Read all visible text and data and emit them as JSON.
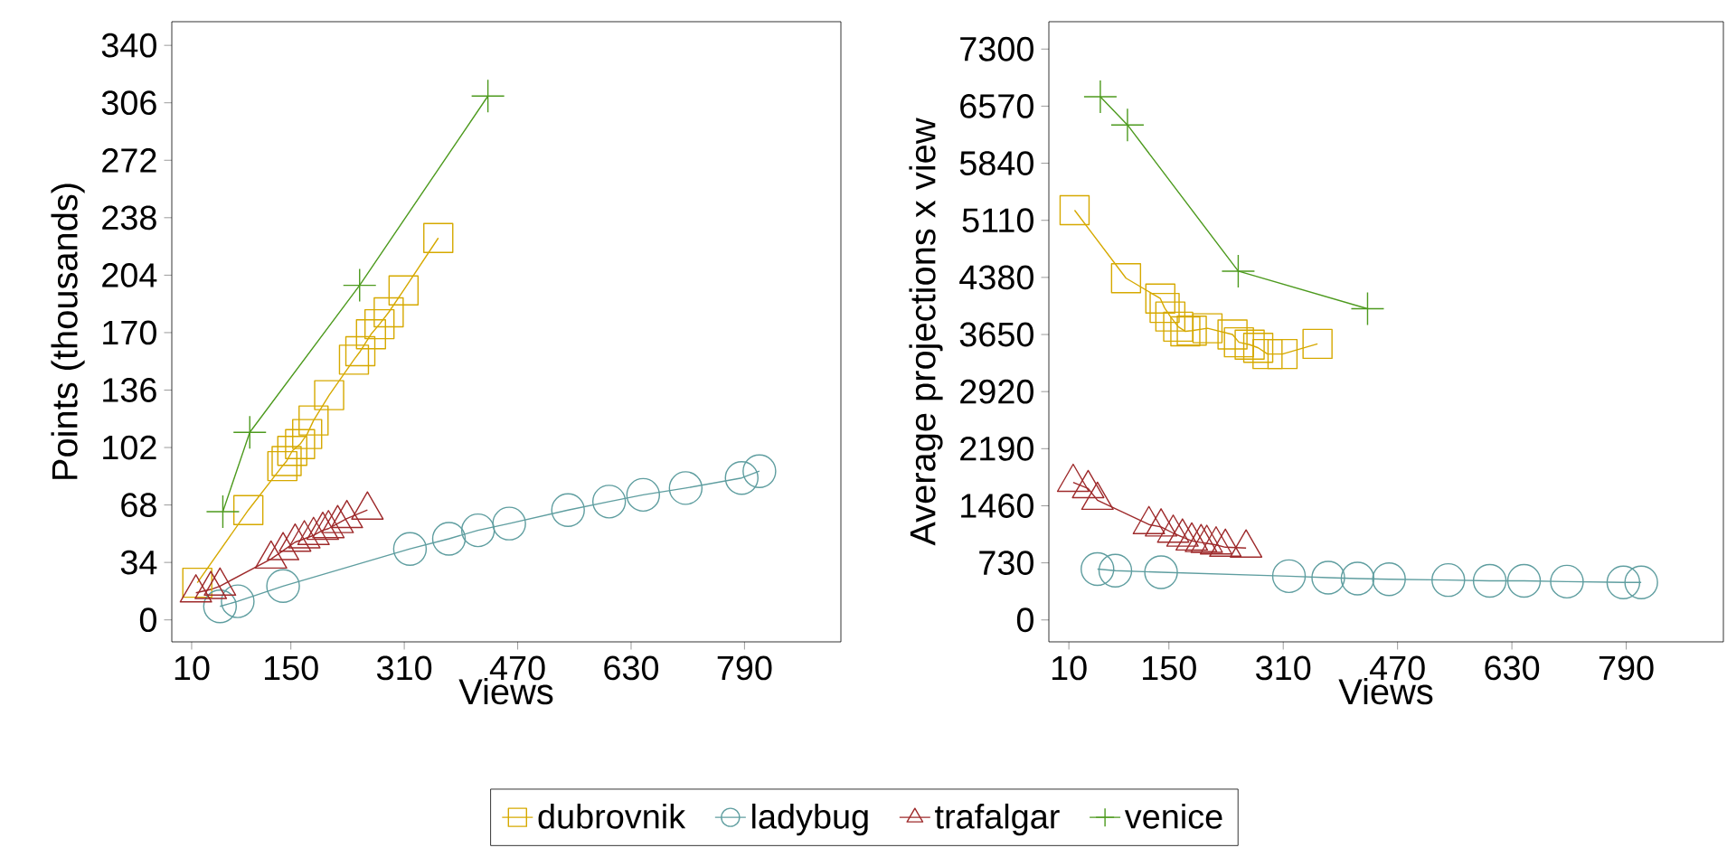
{
  "chart_data": [
    {
      "type": "line",
      "xlabel": "Views",
      "ylabel": "Points (thousands)",
      "xlim": [
        -18,
        926
      ],
      "ylim": [
        -13,
        354
      ],
      "xticks": [
        10,
        150,
        310,
        470,
        630,
        790
      ],
      "yticks": [
        0,
        34,
        68,
        102,
        136,
        170,
        204,
        238,
        272,
        306,
        340
      ],
      "legend": "bottom",
      "series": [
        {
          "name": "dubrovnik",
          "color": "#d6a900",
          "marker": "square",
          "x": [
            18,
            90,
            138,
            144,
            152,
            163,
            173,
            182,
            204,
            239,
            248,
            263,
            275,
            288,
            309,
            358
          ],
          "values": [
            22,
            65,
            91,
            94,
            100,
            104,
            110,
            118,
            133,
            154,
            159,
            169,
            175,
            182,
            195,
            226
          ]
        },
        {
          "name": "ladybug",
          "color": "#5f9ea0",
          "marker": "circle",
          "x": [
            50,
            75,
            139,
            318,
            373,
            414,
            458,
            541,
            599,
            647,
            707,
            786,
            811
          ],
          "values": [
            8,
            11,
            20,
            42,
            48,
            53,
            57,
            65,
            70,
            74,
            78,
            84,
            88
          ]
        },
        {
          "name": "trafalgar",
          "color": "#9e2a2b",
          "marker": "triangle",
          "x": [
            16,
            37,
            50,
            122,
            139,
            156,
            169,
            182,
            195,
            203,
            216,
            229,
            258
          ],
          "values": [
            16,
            18,
            20,
            36,
            41,
            46,
            48,
            50,
            53,
            54,
            57,
            60,
            65
          ]
        },
        {
          "name": "venice",
          "color": "#4d9a1e",
          "marker": "cross",
          "x": [
            54,
            92,
            247,
            428
          ],
          "values": [
            64,
            111,
            198,
            310
          ]
        }
      ]
    },
    {
      "type": "line",
      "xlabel": "Views",
      "ylabel": "Average projections x view",
      "xlim": [
        -18,
        926
      ],
      "ylim": [
        -280,
        7650
      ],
      "xticks": [
        10,
        150,
        310,
        470,
        630,
        790
      ],
      "yticks": [
        0,
        730,
        1460,
        2190,
        2920,
        3650,
        4380,
        5110,
        5840,
        6570,
        7300
      ],
      "series": [
        {
          "color": "#d6a900",
          "marker": "square",
          "x": [
            18,
            90,
            138,
            144,
            152,
            163,
            173,
            182,
            204,
            239,
            248,
            263,
            275,
            288,
            309,
            358
          ],
          "values": [
            5240,
            4370,
            4110,
            3990,
            3880,
            3750,
            3690,
            3700,
            3730,
            3650,
            3550,
            3520,
            3480,
            3400,
            3400,
            3530
          ]
        },
        {
          "color": "#5f9ea0",
          "marker": "circle",
          "x": [
            50,
            75,
            139,
            318,
            373,
            414,
            458,
            541,
            599,
            647,
            707,
            786,
            811
          ],
          "values": [
            650,
            630,
            610,
            560,
            540,
            530,
            520,
            510,
            500,
            500,
            490,
            480,
            480
          ]
        },
        {
          "color": "#9e2a2b",
          "marker": "triangle",
          "x": [
            16,
            37,
            50,
            122,
            139,
            156,
            169,
            182,
            195,
            203,
            216,
            229,
            258
          ],
          "values": [
            1760,
            1680,
            1530,
            1220,
            1190,
            1110,
            1060,
            1010,
            990,
            980,
            960,
            930,
            920
          ]
        },
        {
          "color": "#4d9a1e",
          "marker": "cross",
          "x": [
            54,
            92,
            247,
            428
          ],
          "values": [
            6690,
            6330,
            4460,
            3980
          ]
        }
      ]
    }
  ]
}
